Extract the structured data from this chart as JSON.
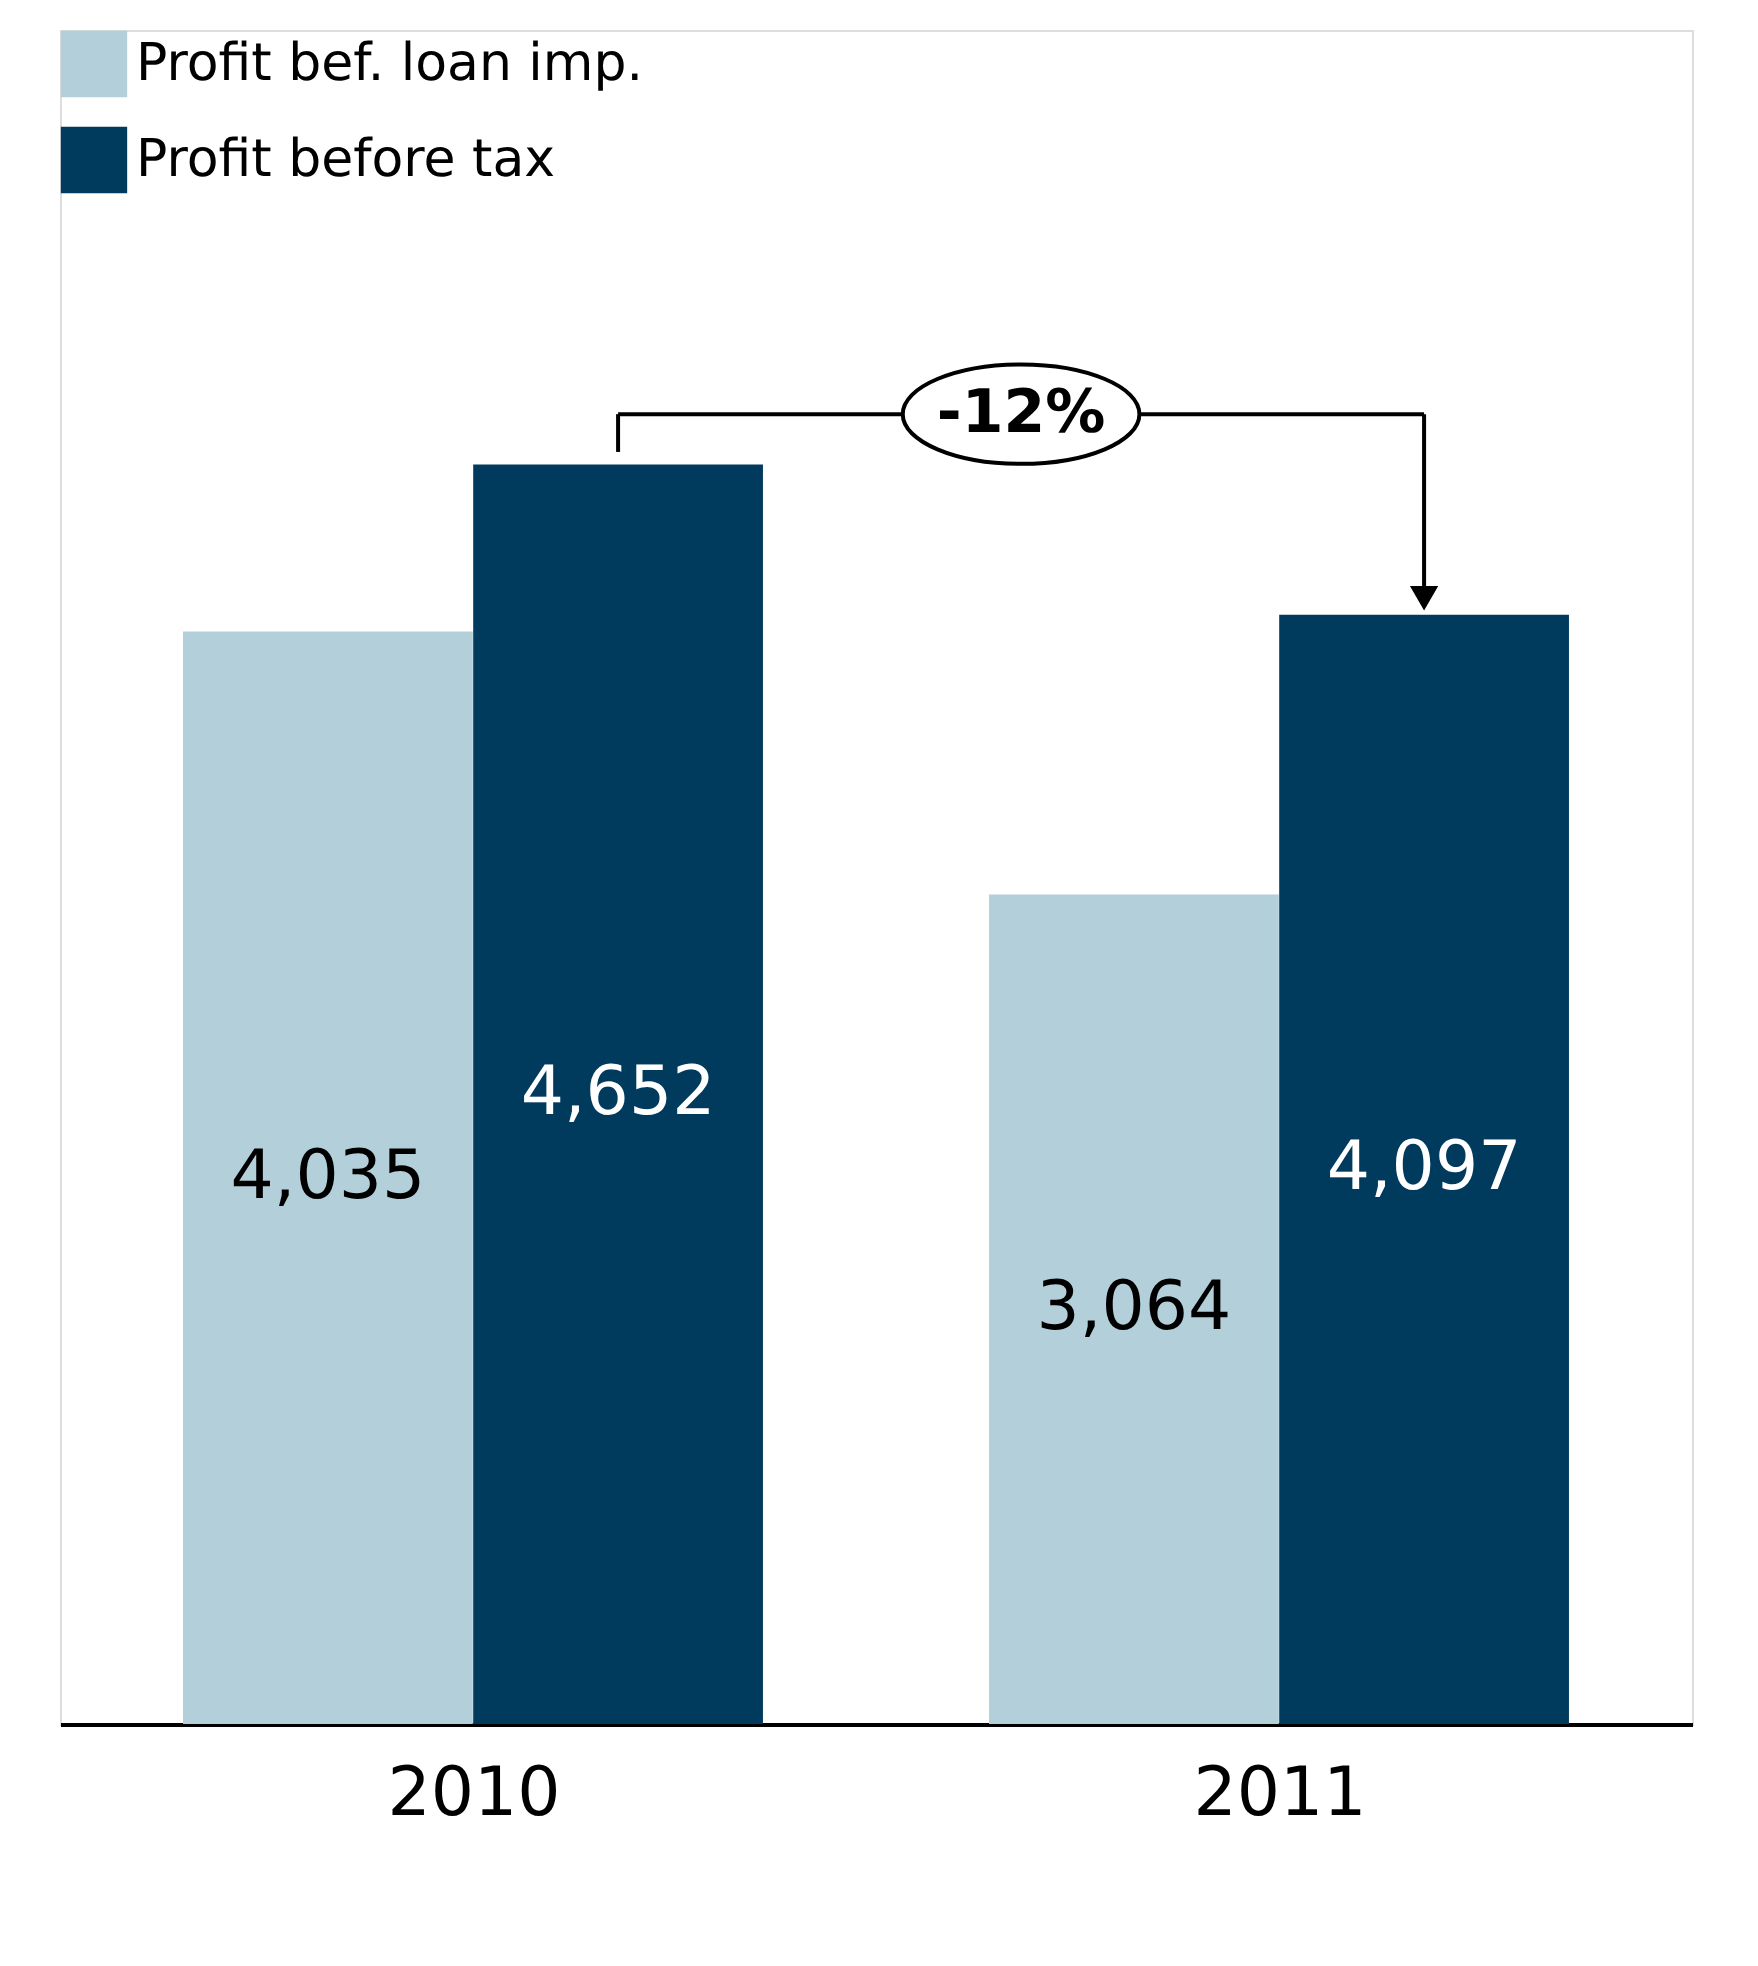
{
  "chart_data": {
    "type": "bar",
    "categories": [
      "2010",
      "2011"
    ],
    "series": [
      {
        "name": "Profit bef. loan imp.",
        "color": "#b3cfd9",
        "values": [
          4035,
          3064
        ],
        "value_labels": [
          "4,035",
          "3,064"
        ]
      },
      {
        "name": "Profit before tax",
        "color": "#003a5c",
        "values": [
          4652,
          4097
        ],
        "value_labels": [
          "4,652",
          "4,097"
        ]
      }
    ],
    "legend": "top left",
    "tick_labels": "x",
    "annotations": [
      "-12%"
    ]
  }
}
